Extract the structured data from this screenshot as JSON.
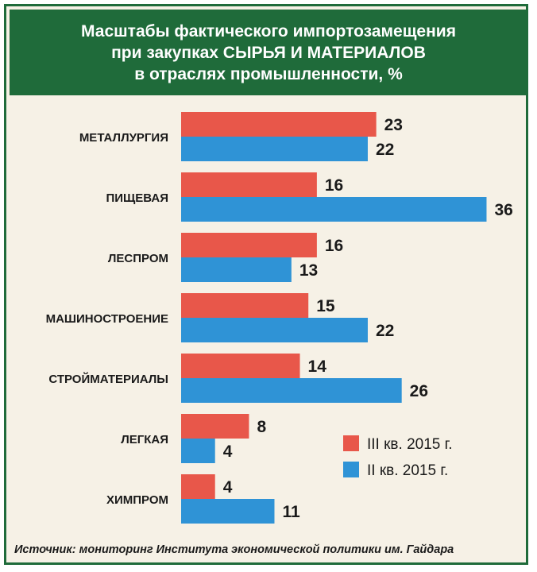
{
  "header": {
    "line1": "Масштабы фактического импортозамещения",
    "line2": "при закупках СЫРЬЯ И МАТЕРИАЛОВ",
    "line3": "в отраслях промышленности, %"
  },
  "source": "Источник: мониторинг Института экономической политики им. Гайдара",
  "colors": {
    "series_q3": "#e8574a",
    "series_q2": "#2f93d6",
    "header_bg": "#1f6b3a",
    "panel_bg": "#f6f1e6"
  },
  "chart_data": {
    "type": "bar",
    "orientation": "horizontal",
    "categories": [
      "МЕТАЛЛУРГИЯ",
      "ПИЩЕВАЯ",
      "ЛЕСПРОМ",
      "МАШИНОСТРОЕНИЕ",
      "СТРОЙМАТЕРИАЛЫ",
      "ЛЕГКАЯ",
      "ХИМПРОМ"
    ],
    "series": [
      {
        "name": "III кв. 2015 г.",
        "values": [
          23,
          16,
          16,
          15,
          14,
          8,
          4
        ]
      },
      {
        "name": "II кв. 2015 г.",
        "values": [
          22,
          36,
          13,
          22,
          26,
          4,
          11
        ]
      }
    ],
    "title": "Масштабы фактического импортозамещения при закупках СЫРЬЯ И МАТЕРИАЛОВ в отраслях промышленности, %",
    "xlim": [
      0,
      36
    ],
    "grid": false,
    "legend": "bottom-right"
  }
}
